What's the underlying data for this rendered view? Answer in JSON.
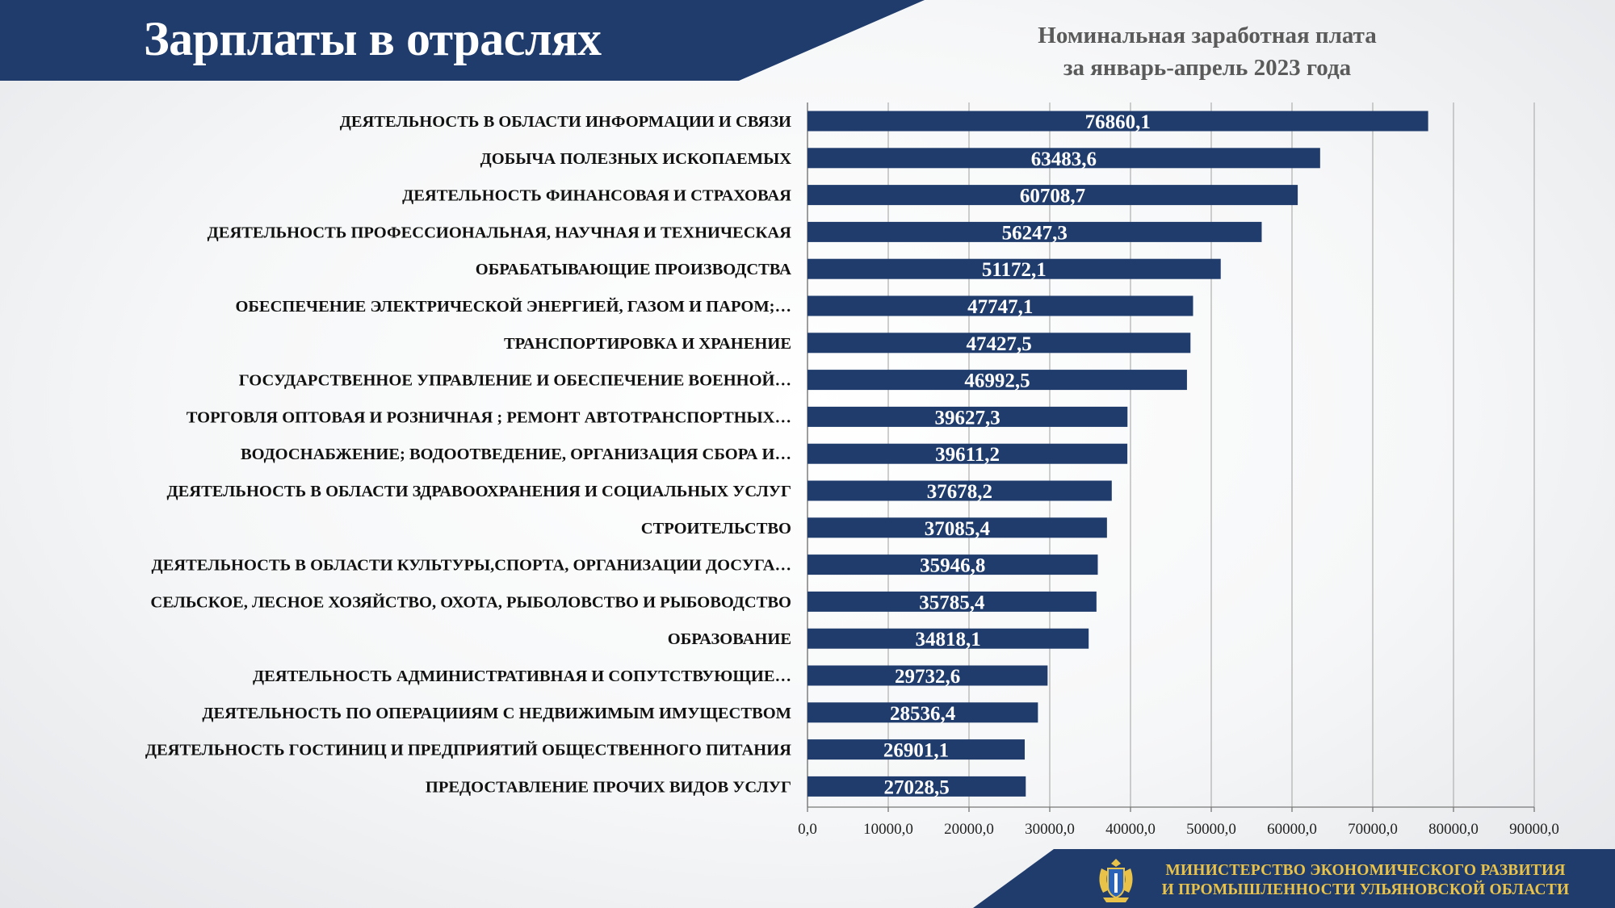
{
  "header": {
    "title": "Зарплаты в отраслях",
    "subtitle_line1": "Номинальная заработная плата",
    "subtitle_line2": "за январь-апрель 2023 года"
  },
  "footer": {
    "ministry_line1": "МИНИСТЕРСТВО ЭКОНОМИЧЕСКОГО РАЗВИТИЯ",
    "ministry_line2": "И ПРОМЫШЛЕННОСТИ УЛЬЯНОВСКОЙ ОБЛАСТИ",
    "emblem_icon": "coat-of-arms-icon"
  },
  "colors": {
    "navy": "#1f3c6c",
    "gold": "#e9c24a",
    "grid": "#b4b4b4",
    "label_text": "#111111",
    "bar_label_text": "#ffffff"
  },
  "chart_data": {
    "type": "bar",
    "orientation": "horizontal",
    "title": "Номинальная заработная плата за январь-апрель 2023 года",
    "xlabel": "",
    "ylabel": "",
    "xlim": [
      0,
      90000
    ],
    "x_ticks": [
      "0,0",
      "10000,0",
      "20000,0",
      "30000,0",
      "40000,0",
      "50000,0",
      "60000,0",
      "70000,0",
      "80000,0",
      "90000,0"
    ],
    "grid": "vertical",
    "legend": "none",
    "categories": [
      "ДЕЯТЕЛЬНОСТЬ В ОБЛАСТИ ИНФОРМАЦИИ И СВЯЗИ",
      "ДОБЫЧА ПОЛЕЗНЫХ ИСКОПАЕМЫХ",
      "ДЕЯТЕЛЬНОСТЬ ФИНАНСОВАЯ И СТРАХОВАЯ",
      "ДЕЯТЕЛЬНОСТЬ ПРОФЕССИОНАЛЬНАЯ, НАУЧНАЯ И ТЕХНИЧЕСКАЯ",
      "ОБРАБАТЫВАЮЩИЕ ПРОИЗВОДСТВА",
      "ОБЕСПЕЧЕНИЕ ЭЛЕКТРИЧЕСКОЙ ЭНЕРГИЕЙ, ГАЗОМ И ПАРОМ;…",
      "ТРАНСПОРТИРОВКА И ХРАНЕНИЕ",
      "ГОСУДАРСТВЕННОЕ УПРАВЛЕНИЕ И ОБЕСПЕЧЕНИЕ  ВОЕННОЙ…",
      "ТОРГОВЛЯ ОПТОВАЯ И РОЗНИЧНАЯ ; РЕМОНТ  АВТОТРАНСПОРТНЫХ…",
      "ВОДОСНАБЖЕНИЕ; ВОДООТВЕДЕНИЕ, ОРГАНИЗАЦИЯ СБОРА И…",
      "ДЕЯТЕЛЬНОСТЬ В ОБЛАСТИ ЗДРАВООХРАНЕНИЯ И СОЦИАЛЬНЫХ  УСЛУГ",
      "СТРОИТЕЛЬСТВО",
      "ДЕЯТЕЛЬНОСТЬ В ОБЛАСТИ КУЛЬТУРЫ,СПОРТА, ОРГАНИЗАЦИИ ДОСУГА…",
      "СЕЛЬСКОЕ, ЛЕСНОЕ ХОЗЯЙСТВО, ОХОТА, РЫБОЛОВСТВО И РЫБОВОДСТВО",
      "ОБРАЗОВАНИЕ",
      "ДЕЯТЕЛЬНОСТЬ АДМИНИСТРАТИВНАЯ И СОПУТСТВУЮЩИЕ…",
      "ДЕЯТЕЛЬНОСТЬ ПО ОПЕРАЦИИЯМ С НЕДВИЖИМЫМ ИМУЩЕСТВОМ",
      "ДЕЯТЕЛЬНОСТЬ ГОСТИНИЦ И ПРЕДПРИЯТИЙ ОБЩЕСТВЕННОГО ПИТАНИЯ",
      "ПРЕДОСТАВЛЕНИЕ ПРОЧИХ ВИДОВ УСЛУГ"
    ],
    "values": [
      76860.1,
      63483.6,
      60708.7,
      56247.3,
      51172.1,
      47747.1,
      47427.5,
      46992.5,
      39627.3,
      39611.2,
      37678.2,
      37085.4,
      35946.8,
      35785.4,
      34818.1,
      29732.6,
      28536.4,
      26901.1,
      27028.5
    ],
    "value_labels": [
      "76860,1",
      "63483,6",
      "60708,7",
      "56247,3",
      "51172,1",
      "47747,1",
      "47427,5",
      "46992,5",
      "39627,3",
      "39611,2",
      "37678,2",
      "37085,4",
      "35946,8",
      "35785,4",
      "34818,1",
      "29732,6",
      "28536,4",
      "26901,1",
      "27028,5"
    ]
  }
}
